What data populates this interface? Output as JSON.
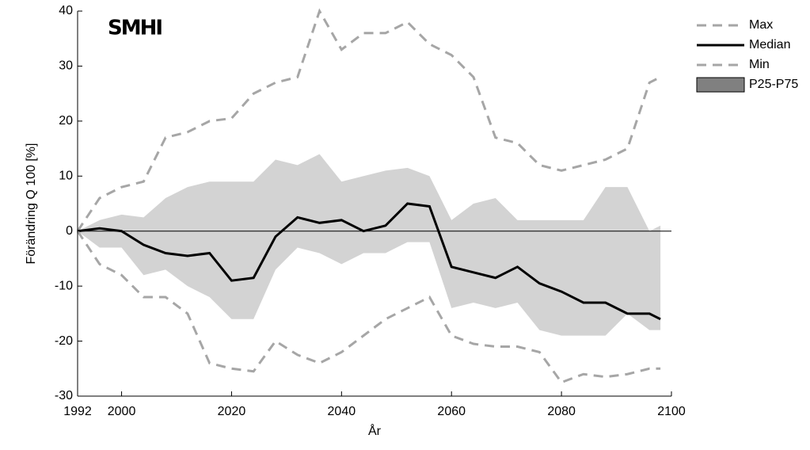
{
  "chart_data": {
    "type": "line",
    "logo": "SMHI",
    "x_label": "År",
    "y_label": "Förändring Q 100 [%]",
    "x": [
      1992,
      1996,
      2000,
      2004,
      2008,
      2012,
      2016,
      2020,
      2024,
      2028,
      2032,
      2036,
      2040,
      2044,
      2048,
      2052,
      2056,
      2060,
      2064,
      2068,
      2072,
      2076,
      2080,
      2084,
      2088,
      2092,
      2096,
      2098
    ],
    "series": [
      {
        "name": "Max",
        "color": "#a6a6a6",
        "dash": true,
        "values": [
          0,
          6,
          8,
          9,
          17,
          18,
          20,
          20.5,
          25,
          27,
          28,
          40,
          33,
          36,
          36,
          38,
          34,
          32,
          28,
          17,
          16,
          12,
          11,
          12,
          13,
          15,
          27,
          28
        ]
      },
      {
        "name": "Median",
        "color": "#000000",
        "dash": false,
        "values": [
          0,
          0.5,
          0,
          -2.5,
          -4,
          -4.5,
          -4,
          -9,
          -8.5,
          -1,
          2.5,
          1.5,
          2,
          0,
          1,
          5,
          4.5,
          -6.5,
          -7.5,
          -8.5,
          -6.5,
          -9.5,
          -11,
          -13,
          -13,
          -15,
          -15,
          -16
        ]
      },
      {
        "name": "Min",
        "color": "#a6a6a6",
        "dash": true,
        "values": [
          0,
          -6,
          -8,
          -12,
          -12,
          -15,
          -24,
          -25,
          -25.5,
          -20,
          -22.5,
          -24,
          -22,
          -19,
          -16,
          -14,
          -12,
          -19,
          -20.5,
          -21,
          -21,
          -22,
          -27.5,
          -26,
          -26.5,
          -26,
          -25,
          -25
        ]
      },
      {
        "name": "P25-P75",
        "color": "#d3d3d3",
        "legend_color": "#808080",
        "band": true,
        "values": [
          0,
          2,
          3,
          2.5,
          6,
          8,
          9,
          9,
          9,
          13,
          12,
          14,
          9,
          10,
          11,
          11.5,
          10,
          2,
          5,
          6,
          2,
          2,
          2,
          2,
          8,
          8,
          0,
          1
        ],
        "lower": [
          0,
          -3,
          -3,
          -8,
          -7,
          -10,
          -12,
          -16,
          -16,
          -7,
          -3,
          -4,
          -6,
          -4,
          -4,
          -2,
          -2,
          -14,
          -13,
          -14,
          -13,
          -18,
          -19,
          -19,
          -19,
          -15,
          -18,
          -18
        ]
      }
    ],
    "xlim": [
      1992,
      2100
    ],
    "xticks": [
      1992,
      2000,
      2020,
      2040,
      2060,
      2080,
      2100
    ],
    "ylim": [
      -30,
      40
    ],
    "yticks": [
      -30,
      -20,
      -10,
      0,
      10,
      20,
      30,
      40
    ],
    "legend": "outside-right-top"
  }
}
